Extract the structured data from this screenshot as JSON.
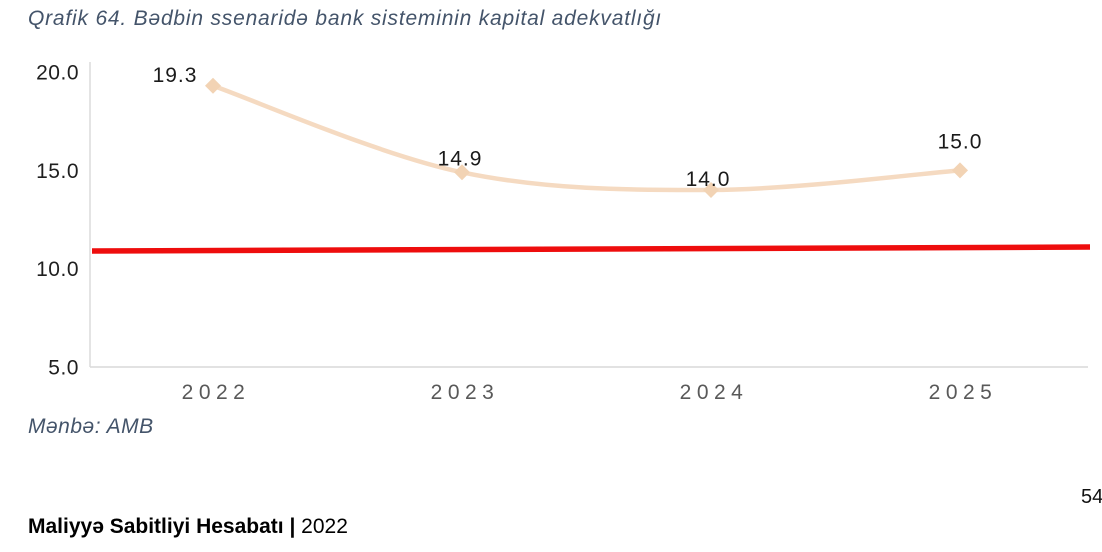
{
  "header": {
    "title": "Qrafik 64. Bədbin ssenaridə bank sisteminin kapital adekvatlığı"
  },
  "source": {
    "label": "Mənbə: AMB"
  },
  "footer": {
    "report_title": "Maliyyə Sabitliyi Hesabatı |",
    "year": "2022",
    "page_number": "54"
  },
  "chart_data": {
    "type": "line",
    "title": "Qrafik 64. Bədbin ssenaridə bank sisteminin kapital adekvatlığı",
    "categories": [
      "2022",
      "2023",
      "2024",
      "2025"
    ],
    "series": [
      {
        "name": "kapital-adekvatligi",
        "values": [
          19.3,
          14.9,
          14.0,
          15.0
        ],
        "data_labels": [
          "19.3",
          "14.9",
          "14.0",
          "15.0"
        ],
        "color": "#F5DAC1",
        "marker_color": "#F2D3B4",
        "marker": "diamond",
        "smooth": true
      },
      {
        "name": "red-reference-line",
        "values": [
          10.9,
          11.1
        ],
        "color": "#EE0D0D",
        "style": "straight-reference-line"
      }
    ],
    "yticks": [
      20.0,
      15.0,
      10.0,
      5.0
    ],
    "ytick_labels": [
      "20.0",
      "15.0",
      "10.0",
      "5.0"
    ],
    "ylim": [
      5.0,
      20.0
    ],
    "xlabel": "",
    "ylabel": "",
    "grid": false,
    "legend": "none",
    "axis_color": "#D9D9D9"
  }
}
